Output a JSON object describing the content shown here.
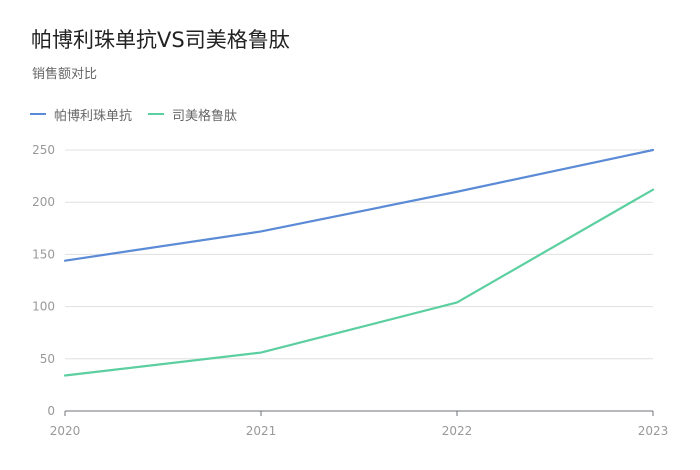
{
  "chart_data": {
    "type": "line",
    "title": "帕博利珠单抗VS司美格鲁肽",
    "subtitle": "销售额对比",
    "x": [
      "2020",
      "2021",
      "2022",
      "2023"
    ],
    "ylim": [
      0,
      250
    ],
    "yticks": [
      "0",
      "50",
      "100",
      "150",
      "200",
      "250"
    ],
    "grid": true,
    "legend_position": "top-left",
    "series": [
      {
        "name": "帕博利珠单抗",
        "values": [
          144,
          172,
          210,
          250
        ],
        "color": "#5b8bd6"
      },
      {
        "name": "司美格鲁肽",
        "values": [
          34,
          56,
          104,
          212
        ],
        "color": "#5ccfa0"
      }
    ]
  }
}
